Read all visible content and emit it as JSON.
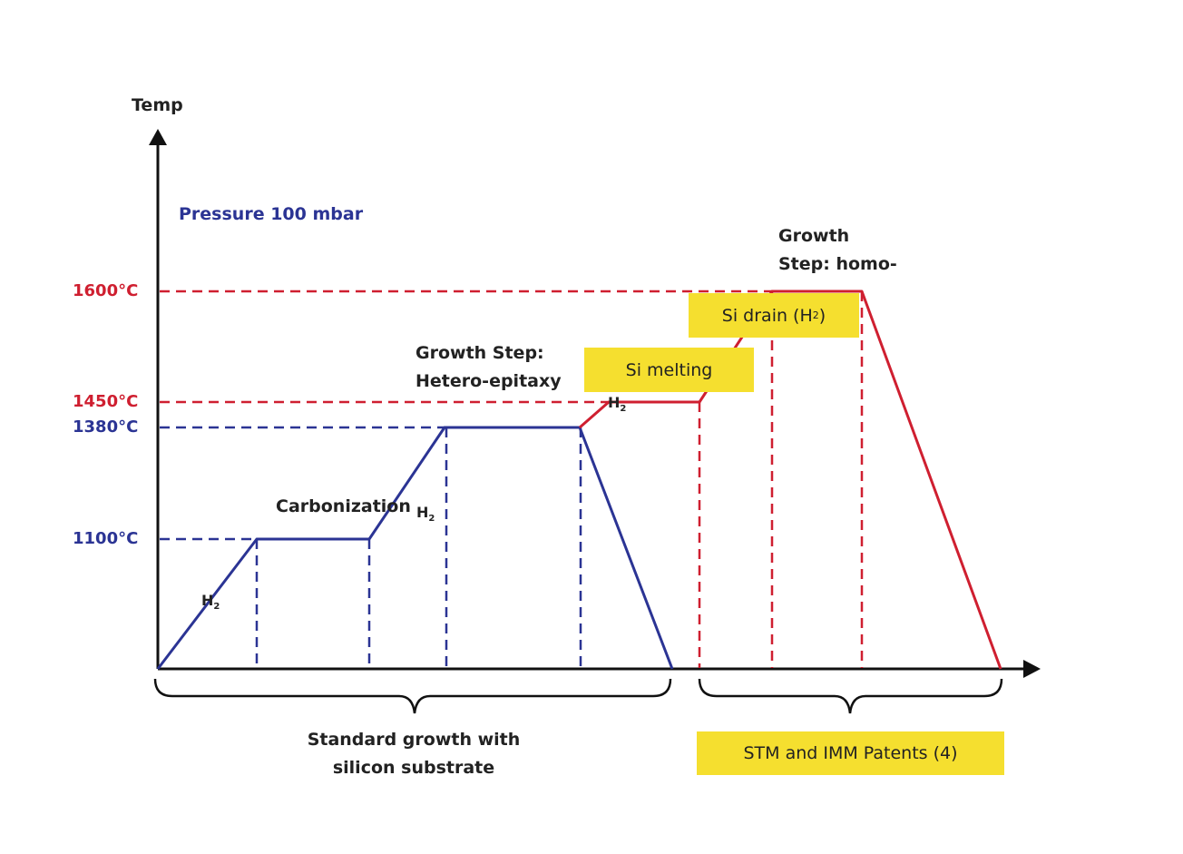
{
  "axis": {
    "y_label": "Temp"
  },
  "pressure": "Pressure 100 mbar",
  "temperatures": {
    "t1600": "1600°C",
    "t1450": "1450°C",
    "t1380": "1380°C",
    "t1100": "1100°C"
  },
  "stages": {
    "carbonization": "Carbonization",
    "hetero_line1": "Growth Step:",
    "hetero_line2": "Hetero-epitaxy",
    "homo_line1": "Growth",
    "homo_line2": "Step: homo-"
  },
  "boxes": {
    "si_melting": "Si melting",
    "si_drain": "Si drain (H",
    "si_drain_sub": "2",
    "si_drain_close": ")",
    "patents": "STM and IMM Patents (4)"
  },
  "gas": {
    "symbol": "H",
    "subscript": "2"
  },
  "braces": {
    "standard_line1": "Standard growth with",
    "standard_line2": "silicon substrate"
  },
  "colors": {
    "blue": "#2b3494",
    "red": "#cf1f30",
    "axis": "#111111",
    "highlight": "#f5df2f"
  }
}
